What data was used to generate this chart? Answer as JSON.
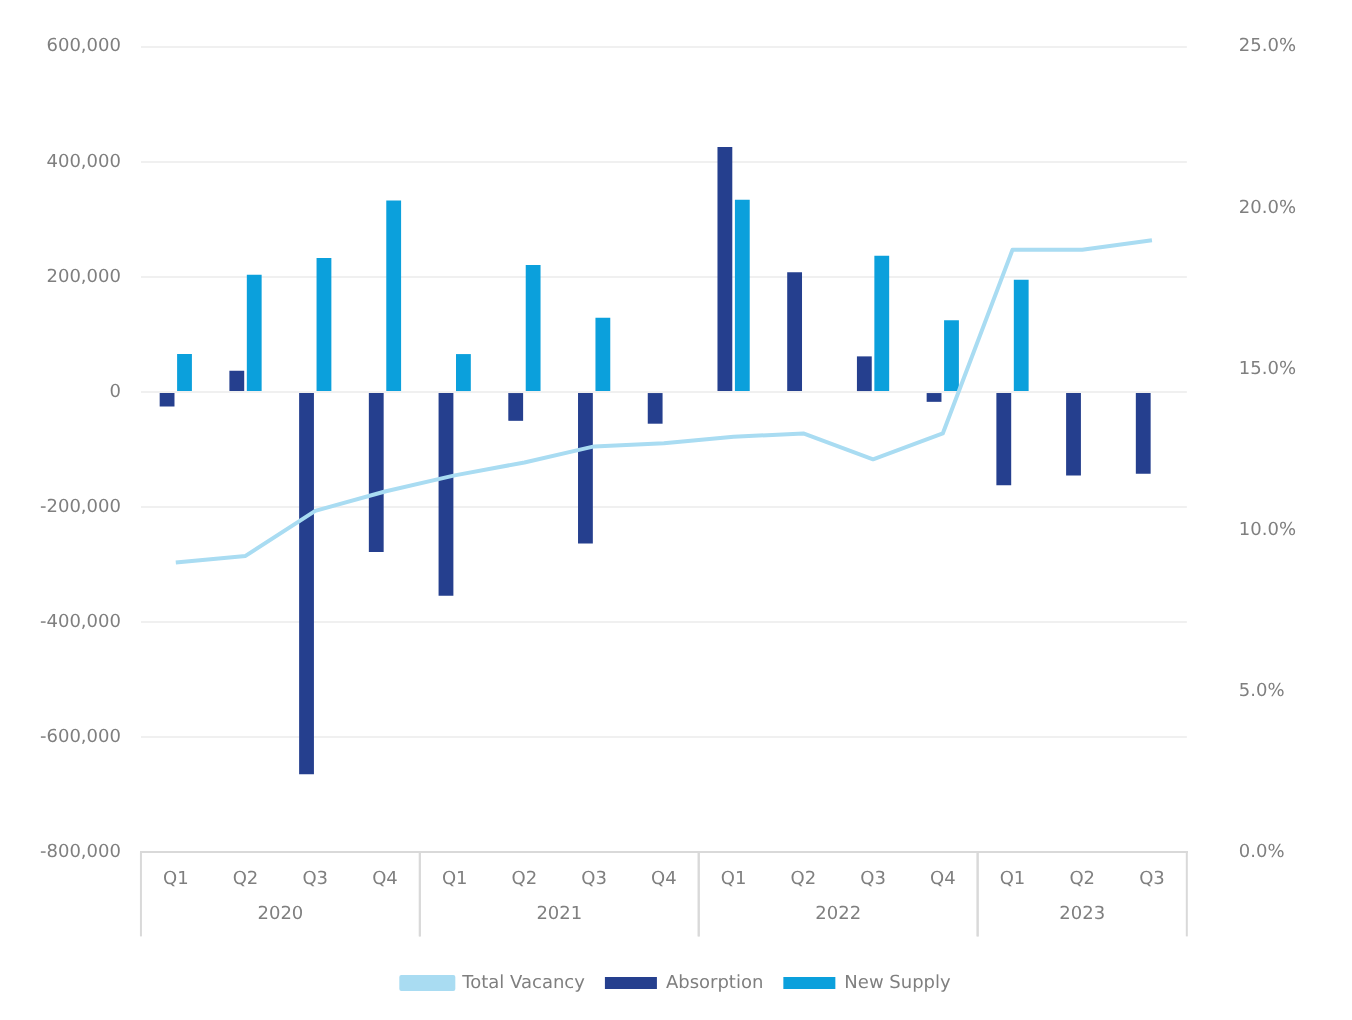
{
  "chart_data": {
    "type": "bar",
    "categories": [
      "Q1",
      "Q2",
      "Q3",
      "Q4",
      "Q1",
      "Q2",
      "Q3",
      "Q4",
      "Q1",
      "Q2",
      "Q3",
      "Q4",
      "Q1",
      "Q2",
      "Q3"
    ],
    "series": [
      {
        "name": "Absorption",
        "color": "#253f8e",
        "values": [
          -25000,
          37000,
          -664000,
          -278000,
          -354000,
          -50000,
          -263000,
          -55000,
          426000,
          208000,
          62000,
          -17000,
          -162000,
          -145000,
          -142000
        ]
      },
      {
        "name": "New Supply",
        "color": "#0ba0dc",
        "values": [
          66000,
          204000,
          233000,
          333000,
          66000,
          221000,
          129000,
          null,
          334000,
          null,
          237000,
          125000,
          195000,
          null,
          null
        ]
      },
      {
        "name": "Total Vacancy",
        "type": "line",
        "axis": "y2",
        "color": "#a9dcf2",
        "marker": "none",
        "values": [
          9.0,
          9.2,
          10.6,
          11.2,
          11.7,
          12.1,
          12.6,
          12.7,
          12.9,
          13.0,
          12.2,
          13.0,
          18.7,
          18.7,
          19.0
        ]
      }
    ],
    "ylim": [
      -800000,
      600000
    ],
    "yticks": [
      {
        "value": -800000,
        "label": "-800,000"
      },
      {
        "value": -600000,
        "label": "-600,000"
      },
      {
        "value": -400000,
        "label": "-400,000"
      },
      {
        "value": -200000,
        "label": "-200,000"
      },
      {
        "value": 0,
        "label": "0"
      },
      {
        "value": 200000,
        "label": "200,000"
      },
      {
        "value": 400000,
        "label": "400,000"
      },
      {
        "value": 600000,
        "label": "600,000"
      }
    ],
    "y2lim": [
      0,
      25
    ],
    "y2ticks": [
      {
        "value": 0,
        "label": "0.0%"
      },
      {
        "value": 5,
        "label": "5.0%"
      },
      {
        "value": 10,
        "label": "10.0%"
      },
      {
        "value": 15,
        "label": "15.0%"
      },
      {
        "value": 20,
        "label": "20.0%"
      },
      {
        "value": 25,
        "label": "25.0%"
      }
    ],
    "annotations": [
      "2020",
      "2021",
      "2022",
      "2023"
    ],
    "grid": "y",
    "legend": "bottom"
  }
}
